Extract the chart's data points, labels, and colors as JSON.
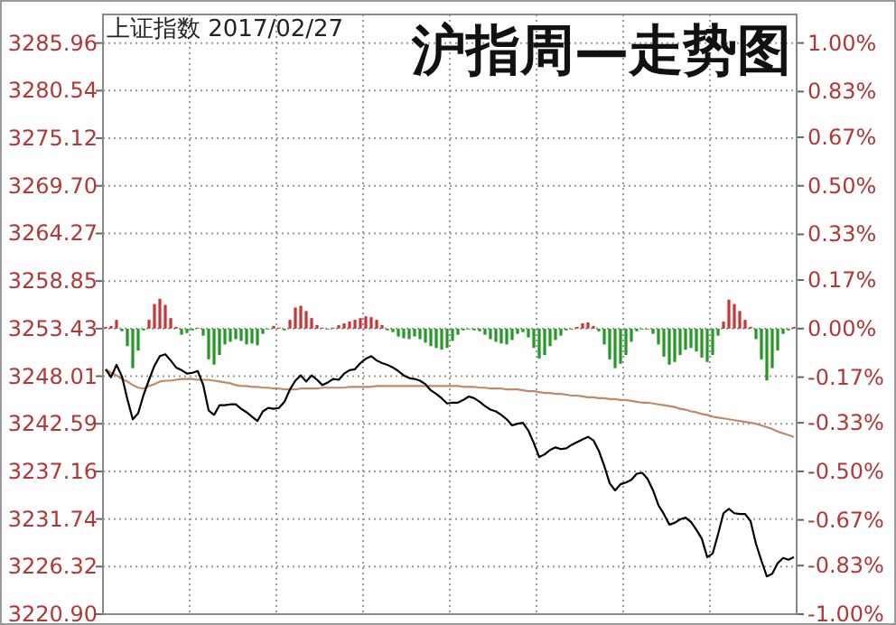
{
  "chart_data": {
    "type": "bar",
    "title": "沪指周—走势图",
    "subtitle": "上证指数 2017/02/27",
    "categories": [
      null,
      null,
      null,
      null,
      null,
      null,
      null,
      null,
      null,
      null,
      null,
      null,
      null,
      null,
      null,
      null,
      null,
      null,
      null,
      null,
      null,
      null,
      null,
      null,
      null,
      null,
      null,
      null,
      null,
      null,
      null,
      null,
      null,
      null,
      null,
      null,
      null,
      null,
      null,
      null,
      null,
      null,
      null,
      null,
      null,
      null,
      null,
      null,
      null,
      null,
      null,
      null,
      null,
      null,
      null,
      null,
      null,
      null,
      null,
      null,
      null,
      null,
      null,
      null,
      null,
      null,
      null,
      null,
      null,
      null,
      null,
      null,
      null,
      null,
      null,
      null,
      null,
      null,
      null,
      null,
      null,
      null,
      null,
      null,
      null,
      null,
      null,
      null,
      null,
      null,
      null,
      null,
      null,
      null,
      null,
      null,
      null,
      null,
      null,
      null,
      null,
      null,
      null,
      null,
      null,
      null,
      null,
      null,
      null,
      null,
      null,
      null,
      null,
      null,
      null,
      null,
      null,
      null,
      null,
      null,
      null,
      null,
      null,
      null,
      null,
      null,
      null,
      null
    ],
    "ylim": [
      3220.9,
      3289.22
    ],
    "yticks": [
      3285.96,
      3280.54,
      3275.12,
      {
        "value": 3269.7,
        "label": "3269.70"
      },
      3264.27,
      3258.85,
      3253.43,
      3248.01,
      3242.59,
      3237.16,
      3231.74,
      3226.32,
      {
        "value": 3220.9,
        "label": "3220.90"
      }
    ],
    "y2lim": [
      -1.0,
      1.1
    ],
    "y2ticks": [
      {
        "value": 1.0,
        "label": "1.00%"
      },
      {
        "value": 0.83,
        "label": "0.83%"
      },
      {
        "value": 0.67,
        "label": "0.67%"
      },
      {
        "value": 0.5,
        "label": "0.50%"
      },
      {
        "value": 0.33,
        "label": "0.33%"
      },
      {
        "value": 0.17,
        "label": "0.17%"
      },
      {
        "value": 0.0,
        "label": "0.00%"
      },
      {
        "value": -0.17,
        "label": "-0.17%"
      },
      {
        "value": -0.33,
        "label": "-0.33%"
      },
      {
        "value": -0.5,
        "label": "-0.50%"
      },
      {
        "value": -0.67,
        "label": "-0.67%"
      },
      {
        "value": -0.83,
        "label": "-0.83%"
      },
      {
        "value": -1.0,
        "label": "-1.00%"
      }
    ],
    "grid": true,
    "series": [
      {
        "base": [
          3253.43,
          3253.43,
          3253.43,
          3253.43,
          3253.43,
          3253.43,
          3253.43,
          3253.43,
          3253.43,
          3253.43,
          3253.43,
          3253.43,
          3253.43,
          3253.43,
          3253.43,
          3253.43,
          3253.43,
          3253.43,
          3253.43,
          3253.43,
          3253.43,
          3253.43,
          3253.43,
          3253.43,
          3253.43,
          3253.43,
          3253.43,
          3253.43,
          3253.43,
          3253.43,
          3253.43,
          3253.43,
          3253.43,
          3253.43,
          3253.43,
          3253.43,
          3253.43,
          3253.43,
          3253.43,
          3253.43,
          3253.43,
          3253.43,
          3253.43,
          3253.43,
          3253.43,
          3253.43,
          3253.43,
          3253.43,
          3253.43,
          3253.43,
          3253.43,
          3253.43,
          3253.43,
          3253.43,
          3253.43,
          3253.43,
          3253.43,
          3253.43,
          3253.43,
          3253.43,
          3253.43,
          3253.43,
          3253.43,
          3253.43,
          3253.43,
          3253.43,
          3253.43,
          3253.43,
          3253.43,
          3253.43,
          3253.43,
          3253.43,
          3253.43,
          3253.43,
          3253.43,
          3253.43,
          3253.43,
          3253.43,
          3253.43,
          3253.43,
          3253.43,
          3253.43,
          3253.43,
          3253.43,
          3253.43,
          3253.43,
          3253.43,
          3253.43,
          3253.43,
          3253.43,
          3253.43,
          3253.43,
          3253.43,
          3253.43,
          3253.43,
          3253.43,
          3253.43,
          3253.43,
          3253.43,
          3253.43,
          3253.43,
          3253.43,
          3253.43,
          3253.43,
          3253.43,
          3253.43,
          3253.43,
          3253.43,
          3253.43,
          3253.43,
          3253.43,
          3253.43,
          3253.43,
          3253.43,
          3253.43,
          3253.43,
          3253.43,
          3253.43,
          3253.43,
          3253.43,
          3253.43,
          3253.43,
          3253.43,
          3253.43,
          3253.43,
          3253.43,
          3253.43,
          3253.43
        ],
        "values": [
          0.2,
          0.3,
          1.0,
          -0.3,
          -2.0,
          -4.5,
          -2.5,
          -0.2,
          1.0,
          2.8,
          3.4,
          2.7,
          1.2,
          0.2,
          -0.7,
          -0.5,
          -0.2,
          0.1,
          -0.8,
          -3.5,
          -4.1,
          -3.0,
          -1.8,
          -1.5,
          -1.2,
          -1.4,
          -1.8,
          -1.7,
          -1.9,
          -0.6,
          -0.1,
          0.3,
          0.1,
          -0.2,
          1.0,
          2.4,
          2.6,
          2.0,
          1.2,
          0.4,
          0.1,
          -0.1,
          0.1,
          0.4,
          0.6,
          0.8,
          1.0,
          1.2,
          1.4,
          1.3,
          1.0,
          0.4,
          -0.2,
          -0.4,
          -0.9,
          -1.1,
          -1.2,
          -0.9,
          -1.2,
          -1.6,
          -2.0,
          -2.2,
          -2.4,
          -2.2,
          -1.4,
          -0.7,
          -0.2,
          -0.1,
          -0.2,
          -0.3,
          -0.7,
          -1.2,
          -1.5,
          -1.7,
          -1.8,
          -1.3,
          -0.6,
          -0.4,
          -1.0,
          -2.2,
          -3.4,
          -3.0,
          -2.0,
          -1.3,
          -0.8,
          -0.2,
          -0.1,
          0.2,
          0.6,
          0.7,
          0.3,
          -0.3,
          -1.8,
          -3.5,
          -4.5,
          -4.0,
          -3.0,
          -1.5,
          -0.3,
          -0.1,
          -0.1,
          -0.6,
          -1.8,
          -3.2,
          -4.1,
          -3.8,
          -3.0,
          -2.4,
          -2.2,
          -2.6,
          -3.3,
          -3.8,
          -3.0,
          -0.8,
          0.8,
          3.3,
          2.8,
          2.0,
          1.0,
          0.2,
          -1.2,
          -3.5,
          -5.9,
          -4.5,
          -2.5,
          -0.6,
          -0.2,
          0.2
        ],
        "colors": [
          "#cc3333",
          "#cc3333",
          "#cc3333",
          "#229922",
          "#229922",
          "#229922",
          "#229922",
          "#229922",
          "#cc3333",
          "#cc3333",
          "#cc3333",
          "#cc3333",
          "#cc3333",
          "#cc3333",
          "#229922",
          "#229922",
          "#229922",
          "#cc3333",
          "#229922",
          "#229922",
          "#229922",
          "#229922",
          "#229922",
          "#229922",
          "#229922",
          "#229922",
          "#229922",
          "#229922",
          "#229922",
          "#229922",
          "#229922",
          "#cc3333",
          "#cc3333",
          "#229922",
          "#cc3333",
          "#cc3333",
          "#cc3333",
          "#cc3333",
          "#cc3333",
          "#cc3333",
          "#cc3333",
          "#229922",
          "#cc3333",
          "#cc3333",
          "#cc3333",
          "#cc3333",
          "#cc3333",
          "#cc3333",
          "#cc3333",
          "#cc3333",
          "#cc3333",
          "#cc3333",
          "#229922",
          "#229922",
          "#229922",
          "#229922",
          "#229922",
          "#229922",
          "#229922",
          "#229922",
          "#229922",
          "#229922",
          "#229922",
          "#229922",
          "#229922",
          "#229922",
          "#229922",
          "#229922",
          "#229922",
          "#229922",
          "#229922",
          "#229922",
          "#229922",
          "#229922",
          "#229922",
          "#229922",
          "#229922",
          "#229922",
          "#229922",
          "#229922",
          "#229922",
          "#229922",
          "#229922",
          "#229922",
          "#229922",
          "#229922",
          "#229922",
          "#cc3333",
          "#cc3333",
          "#cc3333",
          "#cc3333",
          "#229922",
          "#229922",
          "#229922",
          "#229922",
          "#229922",
          "#229922",
          "#229922",
          "#229922",
          "#229922",
          "#229922",
          "#229922",
          "#229922",
          "#229922",
          "#229922",
          "#229922",
          "#229922",
          "#229922",
          "#229922",
          "#229922",
          "#229922",
          "#229922",
          "#229922",
          "#229922",
          "#cc3333",
          "#cc3333",
          "#cc3333",
          "#cc3333",
          "#cc3333",
          "#cc3333",
          "#229922",
          "#229922",
          "#229922",
          "#229922",
          "#229922",
          "#229922",
          "#229922",
          "#cc3333"
        ]
      },
      {
        "type": "line",
        "color": "#c08a6a",
        "values": [
          3248.8,
          3248.4,
          3248.1,
          3247.7,
          3247.4,
          3247.0,
          3246.7,
          3246.6,
          3246.9,
          3247.1,
          3247.4,
          3247.5,
          3247.5,
          3247.6,
          3247.7,
          3247.7,
          3247.7,
          3247.6,
          3247.6,
          3247.6,
          3247.5,
          3247.4,
          3247.3,
          3247.2,
          3247.0,
          3246.9,
          3246.9,
          3246.8,
          3246.8,
          3246.7,
          3246.7,
          3246.6,
          3246.6,
          3246.5,
          3246.5,
          3246.5,
          3246.6,
          3246.6,
          3246.6,
          3246.6,
          3246.7,
          3246.7,
          3246.7,
          3246.7,
          3246.7,
          3246.8,
          3246.8,
          3246.8,
          3246.8,
          3246.8,
          3246.9,
          3246.9,
          3246.9,
          3246.9,
          3246.9,
          3246.9,
          3246.9,
          3246.9,
          3246.9,
          3246.9,
          3246.9,
          3246.9,
          3246.9,
          3246.9,
          3246.9,
          3246.9,
          3246.8,
          3246.8,
          3246.8,
          3246.7,
          3246.7,
          3246.6,
          3246.6,
          3246.6,
          3246.5,
          3246.5,
          3246.5,
          3246.4,
          3246.3,
          3246.3,
          3246.2,
          3246.1,
          3246.1,
          3246.0,
          3246.0,
          3245.9,
          3245.8,
          3245.8,
          3245.7,
          3245.6,
          3245.6,
          3245.5,
          3245.5,
          3245.4,
          3245.4,
          3245.3,
          3245.3,
          3245.2,
          3245.1,
          3245.0,
          3245.0,
          3244.9,
          3244.8,
          3244.7,
          3244.6,
          3244.5,
          3244.3,
          3244.2,
          3244.0,
          3243.9,
          3243.7,
          3243.6,
          3243.4,
          3243.3,
          3243.2,
          3243.1,
          3243.0,
          3242.9,
          3242.8,
          3242.7,
          3242.6,
          3242.4,
          3242.2,
          3242.0,
          3241.7,
          3241.5,
          3241.3,
          3241.1
        ]
      },
      {
        "type": "line",
        "color": "#000000",
        "values": [
          3248.8,
          3247.9,
          3249.3,
          3248.0,
          3245.4,
          3243.1,
          3243.8,
          3245.9,
          3247.6,
          3249.2,
          3250.3,
          3250.5,
          3249.8,
          3249.0,
          3248.7,
          3248.3,
          3248.4,
          3248.6,
          3247.0,
          3244.1,
          3243.6,
          3244.7,
          3244.7,
          3244.8,
          3244.8,
          3244.3,
          3243.9,
          3243.4,
          3242.9,
          3244.0,
          3244.4,
          3244.3,
          3244.4,
          3245.1,
          3246.5,
          3247.5,
          3248.1,
          3247.4,
          3248.1,
          3247.6,
          3247.0,
          3247.3,
          3247.7,
          3247.6,
          3248.3,
          3248.7,
          3248.8,
          3249.5,
          3250.0,
          3250.3,
          3249.8,
          3249.5,
          3249.3,
          3249.0,
          3248.6,
          3248.1,
          3247.8,
          3247.7,
          3247.5,
          3247.1,
          3246.4,
          3246.0,
          3245.5,
          3244.9,
          3245.0,
          3245.0,
          3245.3,
          3245.7,
          3245.5,
          3245.1,
          3244.6,
          3244.2,
          3244.0,
          3243.6,
          3243.1,
          3242.4,
          3242.6,
          3242.7,
          3241.8,
          3240.4,
          3238.8,
          3239.1,
          3239.6,
          3239.9,
          3239.7,
          3239.8,
          3240.2,
          3240.5,
          3240.8,
          3241.1,
          3240.7,
          3239.5,
          3237.8,
          3235.8,
          3235.0,
          3235.7,
          3235.9,
          3236.2,
          3236.9,
          3237.0,
          3236.3,
          3235.0,
          3233.3,
          3232.3,
          3231.1,
          3231.3,
          3231.7,
          3231.9,
          3231.4,
          3230.5,
          3229.5,
          3227.4,
          3227.8,
          3230.0,
          3232.4,
          3232.9,
          3232.4,
          3232.3,
          3232.3,
          3231.5,
          3228.9,
          3227.0,
          3225.2,
          3225.5,
          3226.7,
          3227.3,
          3227.1,
          3227.4
        ]
      }
    ]
  }
}
